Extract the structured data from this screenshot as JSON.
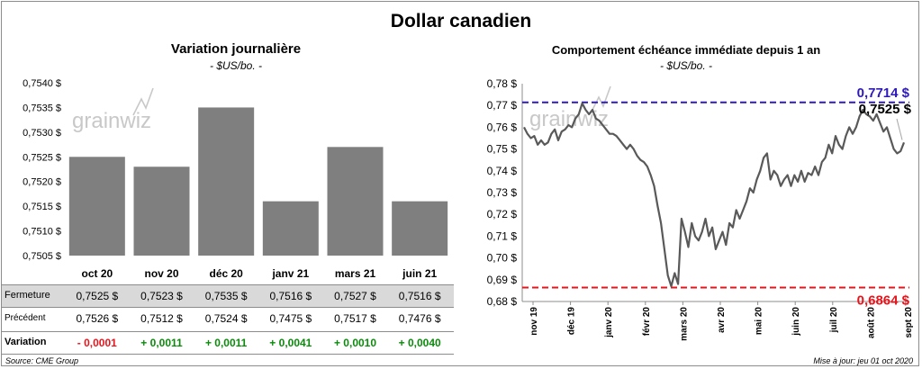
{
  "title": "Dollar canadien",
  "left": {
    "title": "Variation  journalière",
    "subtitle": "- $US/bo. -"
  },
  "right": {
    "title": "Comportement échéance immédiate depuis 1 an",
    "subtitle": "- $US/bo. -"
  },
  "table": {
    "row1_label": "Fermeture",
    "row2_label": "Précédent",
    "row3_label": "Variation",
    "fermeture": [
      "0,7525  $",
      "0,7523  $",
      "0,7535  $",
      "0,7516  $",
      "0,7527  $",
      "0,7516  $"
    ],
    "precedent": [
      "0,7526  $",
      "0,7512  $",
      "0,7524  $",
      "0,7475  $",
      "0,7517  $",
      "0,7476  $"
    ],
    "variation": [
      "- 0,0001",
      "+ 0,0011",
      "+ 0,0011",
      "+ 0,0041",
      "+ 0,0010",
      "+ 0,0040"
    ]
  },
  "footer": {
    "source": "Source: CME Group",
    "updated": "Mise à jour: jeu 01 oct 2020"
  },
  "watermark": "grainwiz",
  "colors": {
    "bar": "#7f7f7f",
    "line": "#595959",
    "high_line": "#2e1ab8",
    "low_line": "#e8141b",
    "positive": "#0b8a0b",
    "negative": "#e8141b",
    "table_shade": "#d9d9d9"
  },
  "chart_data": [
    {
      "type": "bar",
      "title": "Variation  journalière",
      "subtitle": "- $US/bo. -",
      "categories": [
        "oct 20",
        "nov 20",
        "déc 20",
        "janv 21",
        "mars 21",
        "juin 21"
      ],
      "values": [
        0.7525,
        0.7523,
        0.7535,
        0.7516,
        0.7527,
        0.7516
      ],
      "ylim": [
        0.7505,
        0.754
      ],
      "yticks": [
        "0,7505 $",
        "0,7510 $",
        "0,7515 $",
        "0,7520 $",
        "0,7525 $",
        "0,7530 $",
        "0,7535 $",
        "0,7540 $"
      ]
    },
    {
      "type": "line",
      "title": "Comportement échéance immédiate depuis 1 an",
      "subtitle": "- $US/bo. -",
      "ylim": [
        0.68,
        0.78
      ],
      "yticks": [
        "0,68 $",
        "0,69 $",
        "0,70 $",
        "0,71 $",
        "0,72 $",
        "0,73 $",
        "0,74 $",
        "0,75 $",
        "0,76 $",
        "0,77 $",
        "0,78 $"
      ],
      "xticks": [
        "nov 19",
        "déc 19",
        "janv 20",
        "févr 20",
        "mars 20",
        "avr 20",
        "mai 20",
        "juin 20",
        "juil 20",
        "août 20",
        "sept 20"
      ],
      "high": {
        "value": 0.7714,
        "label": "0,7714  $"
      },
      "low": {
        "value": 0.6864,
        "label": "0,6864  $"
      },
      "last": {
        "value": 0.7525,
        "label": "0,7525 $"
      },
      "y": [
        0.76,
        0.757,
        0.755,
        0.756,
        0.752,
        0.754,
        0.752,
        0.753,
        0.757,
        0.759,
        0.754,
        0.758,
        0.759,
        0.761,
        0.76,
        0.764,
        0.766,
        0.771,
        0.768,
        0.766,
        0.768,
        0.764,
        0.763,
        0.761,
        0.759,
        0.757,
        0.757,
        0.756,
        0.754,
        0.752,
        0.75,
        0.752,
        0.75,
        0.747,
        0.745,
        0.744,
        0.742,
        0.738,
        0.733,
        0.724,
        0.716,
        0.704,
        0.692,
        0.687,
        0.693,
        0.688,
        0.718,
        0.712,
        0.705,
        0.716,
        0.71,
        0.708,
        0.712,
        0.718,
        0.71,
        0.714,
        0.704,
        0.708,
        0.712,
        0.706,
        0.716,
        0.714,
        0.722,
        0.718,
        0.722,
        0.726,
        0.732,
        0.73,
        0.736,
        0.74,
        0.746,
        0.748,
        0.736,
        0.74,
        0.738,
        0.733,
        0.736,
        0.738,
        0.733,
        0.738,
        0.735,
        0.74,
        0.735,
        0.739,
        0.738,
        0.742,
        0.738,
        0.744,
        0.746,
        0.752,
        0.748,
        0.756,
        0.752,
        0.75,
        0.756,
        0.76,
        0.757,
        0.76,
        0.765,
        0.768,
        0.766,
        0.765,
        0.763,
        0.766,
        0.762,
        0.758,
        0.76,
        0.755,
        0.75,
        0.748,
        0.749,
        0.753
      ]
    }
  ]
}
